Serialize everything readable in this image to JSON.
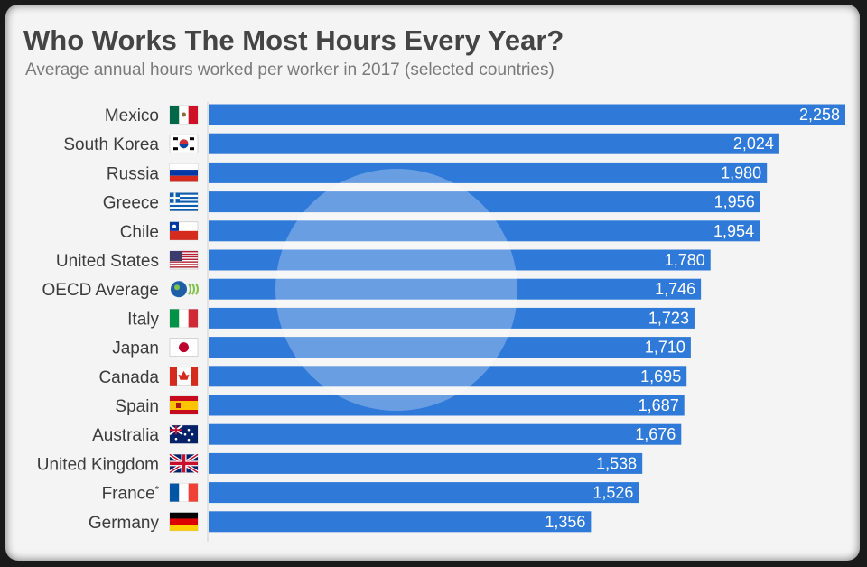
{
  "title": "Who Works The Most Hours Every Year?",
  "subtitle": "Average annual hours worked per worker in 2017 (selected countries)",
  "colors": {
    "bar": "#2f7ad8",
    "background": "#f4f4f4",
    "title": "#444444",
    "subtitle": "#7a7a7a"
  },
  "chart_data": {
    "type": "bar",
    "orientation": "horizontal",
    "title": "Who Works The Most Hours Every Year?",
    "subtitle": "Average annual hours worked per worker in 2017 (selected countries)",
    "categories": [
      "Mexico",
      "South Korea",
      "Russia",
      "Greece",
      "Chile",
      "United States",
      "OECD Average",
      "Italy",
      "Japan",
      "Canada",
      "Spain",
      "Australia",
      "United Kingdom",
      "France",
      "Germany"
    ],
    "category_markers": [
      "",
      "",
      "",
      "",
      "",
      "",
      "",
      "",
      "",
      "",
      "",
      "",
      "",
      "*",
      ""
    ],
    "flags": [
      "mexico-flag",
      "south-korea-flag",
      "russia-flag",
      "greece-flag",
      "chile-flag",
      "united-states-flag",
      "oecd-logo",
      "italy-flag",
      "japan-flag",
      "canada-flag",
      "spain-flag",
      "australia-flag",
      "united-kingdom-flag",
      "france-flag",
      "germany-flag"
    ],
    "values": [
      2258,
      2024,
      1980,
      1956,
      1954,
      1780,
      1746,
      1723,
      1710,
      1695,
      1687,
      1676,
      1538,
      1526,
      1356
    ],
    "value_labels": [
      "2,258",
      "2,024",
      "1,980",
      "1,956",
      "1,954",
      "1,780",
      "1,746",
      "1,723",
      "1,710",
      "1,695",
      "1,687",
      "1,676",
      "1,538",
      "1,526",
      "1,356"
    ],
    "xlim": [
      0,
      2258
    ],
    "grid": false,
    "legend": "none",
    "background_icon": "clock-icon"
  }
}
